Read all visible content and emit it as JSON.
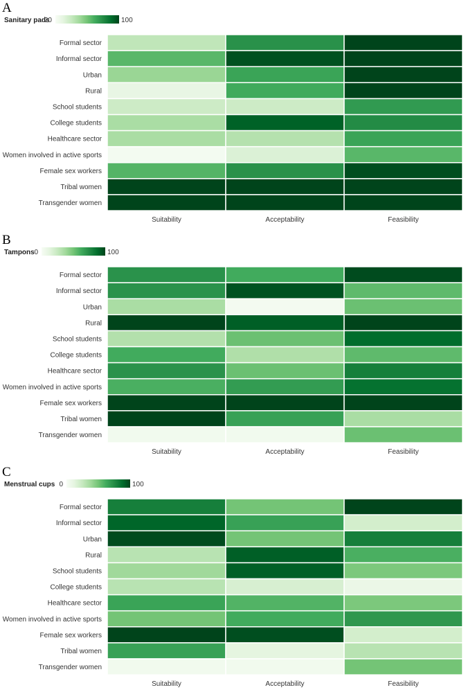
{
  "chart_data": [
    {
      "type": "heatmap",
      "panel": "A",
      "title": "Sanitary pads",
      "scale_min": 20,
      "scale_max": 100,
      "legend_min_label": "20",
      "legend_max_label": "100",
      "columns": [
        "Suitability",
        "Acceptability",
        "Feasibility"
      ],
      "rows": [
        "Formal sector",
        "Informal sector",
        "Urban",
        "Rural",
        "School students",
        "College students",
        "Healthcare sector",
        "Women involved in active sports",
        "Female sex workers",
        "Tribal women",
        "Transgender women"
      ],
      "values": [
        [
          42,
          78,
          100
        ],
        [
          65,
          97,
          100
        ],
        [
          52,
          72,
          100
        ],
        [
          28,
          70,
          100
        ],
        [
          38,
          38,
          75
        ],
        [
          48,
          93,
          80
        ],
        [
          48,
          45,
          72
        ],
        [
          22,
          33,
          65
        ],
        [
          66,
          78,
          98
        ],
        [
          100,
          100,
          100
        ],
        [
          100,
          100,
          100
        ]
      ]
    },
    {
      "type": "heatmap",
      "panel": "B",
      "title": "Tampons",
      "scale_min": 0,
      "scale_max": 100,
      "legend_min_label": "0",
      "legend_max_label": "100",
      "columns": [
        "Suitability",
        "Acceptability",
        "Feasibility"
      ],
      "rows": [
        "Formal sector",
        "Informal sector",
        "Urban",
        "Rural",
        "School students",
        "College students",
        "Healthcare sector",
        "Women involved in active sports",
        "Female sex workers",
        "Tribal women",
        "Transgender women"
      ],
      "values": [
        [
          72,
          62,
          98
        ],
        [
          72,
          96,
          55
        ],
        [
          35,
          3,
          52
        ],
        [
          100,
          92,
          100
        ],
        [
          32,
          52,
          88
        ],
        [
          62,
          33,
          55
        ],
        [
          72,
          52,
          80
        ],
        [
          60,
          68,
          86
        ],
        [
          100,
          100,
          100
        ],
        [
          100,
          66,
          35
        ],
        [
          4,
          4,
          52
        ]
      ]
    },
    {
      "type": "heatmap",
      "panel": "C",
      "title": "Menstrual cups",
      "scale_min": 0,
      "scale_max": 100,
      "legend_min_label": "0",
      "legend_max_label": "100",
      "columns": [
        "Suitability",
        "Acceptability",
        "Feasibility"
      ],
      "rows": [
        "Formal sector",
        "Informal sector",
        "Urban",
        "Rural",
        "School students",
        "College students",
        "Healthcare sector",
        "Women involved in active sports",
        "Female sex workers",
        "Tribal women",
        "Transgender women"
      ],
      "values": [
        [
          80,
          50,
          100
        ],
        [
          90,
          66,
          20
        ],
        [
          98,
          50,
          80
        ],
        [
          30,
          92,
          60
        ],
        [
          38,
          92,
          48
        ],
        [
          30,
          18,
          8
        ],
        [
          65,
          58,
          48
        ],
        [
          50,
          62,
          70
        ],
        [
          100,
          97,
          20
        ],
        [
          66,
          12,
          30
        ],
        [
          4,
          4,
          50
        ]
      ]
    }
  ]
}
